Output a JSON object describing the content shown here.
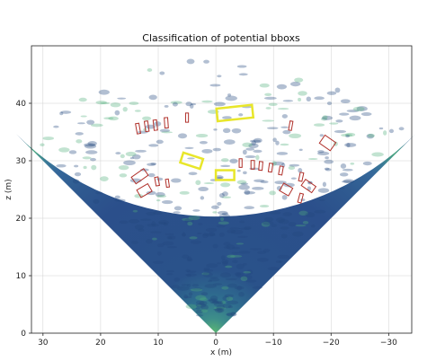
{
  "chart_data": {
    "type": "heatmap",
    "title": "Classification of potential bboxs",
    "xlabel": "x (m)",
    "ylabel": "z (m)",
    "xlim": [
      32,
      -34
    ],
    "ylim": [
      0,
      50
    ],
    "x_ticks": [
      30,
      20,
      10,
      0,
      -10,
      -20,
      -30
    ],
    "x_tick_labels": [
      "30",
      "20",
      "10",
      "0",
      "−10",
      "−20",
      "−30"
    ],
    "y_ticks": [
      0,
      10,
      20,
      30,
      40
    ],
    "y_tick_labels": [
      "0",
      "10",
      "20",
      "30",
      "40"
    ],
    "grid": true,
    "sector": {
      "apex": [
        0,
        0
      ],
      "range_max": 49,
      "half_angle_deg": 45
    },
    "colors": {
      "background": "#2c4f8a",
      "ring_bright": "#4fae7c",
      "selected_box": "#e8e62a",
      "rejected_box": "#b0302a",
      "grid": "#d0d0d0"
    },
    "selected_boxes": [
      {
        "cx": -3.3,
        "cz": 38.3,
        "w": 6.2,
        "h": 2.2,
        "angle": -6
      },
      {
        "cx": 4.2,
        "cz": 30.0,
        "w": 3.6,
        "h": 1.8,
        "angle": 18
      },
      {
        "cx": -1.6,
        "cz": 27.5,
        "w": 3.2,
        "h": 1.7,
        "angle": 0
      }
    ],
    "rejected_boxes": [
      {
        "cx": 13.5,
        "cz": 35.6,
        "w": 0.6,
        "h": 1.8,
        "angle": -10
      },
      {
        "cx": 12.0,
        "cz": 36.0,
        "w": 0.6,
        "h": 1.8,
        "angle": -8
      },
      {
        "cx": 10.5,
        "cz": 36.2,
        "w": 0.6,
        "h": 1.8,
        "angle": -6
      },
      {
        "cx": 8.6,
        "cz": 36.6,
        "w": 0.6,
        "h": 1.8,
        "angle": -4
      },
      {
        "cx": 5.0,
        "cz": 37.5,
        "w": 0.5,
        "h": 1.6,
        "angle": 0
      },
      {
        "cx": -13.0,
        "cz": 36.1,
        "w": 0.5,
        "h": 1.6,
        "angle": 10
      },
      {
        "cx": -19.4,
        "cz": 33.1,
        "w": 2.3,
        "h": 1.7,
        "angle": 35
      },
      {
        "cx": -4.3,
        "cz": 29.6,
        "w": 0.5,
        "h": 1.5,
        "angle": 0
      },
      {
        "cx": -6.4,
        "cz": 29.3,
        "w": 0.6,
        "h": 1.5,
        "angle": 0
      },
      {
        "cx": -7.8,
        "cz": 29.1,
        "w": 0.6,
        "h": 1.5,
        "angle": 5
      },
      {
        "cx": -9.5,
        "cz": 28.8,
        "w": 0.6,
        "h": 1.5,
        "angle": 8
      },
      {
        "cx": -11.3,
        "cz": 28.3,
        "w": 0.6,
        "h": 1.5,
        "angle": 10
      },
      {
        "cx": -14.8,
        "cz": 27.2,
        "w": 0.6,
        "h": 1.5,
        "angle": 12
      },
      {
        "cx": -16.1,
        "cz": 25.6,
        "w": 2.2,
        "h": 1.3,
        "angle": 35
      },
      {
        "cx": -12.2,
        "cz": 25.0,
        "w": 1.8,
        "h": 1.5,
        "angle": 30
      },
      {
        "cx": -14.7,
        "cz": 23.5,
        "w": 0.6,
        "h": 1.6,
        "angle": 15
      },
      {
        "cx": 13.2,
        "cz": 27.3,
        "w": 2.6,
        "h": 1.4,
        "angle": -35
      },
      {
        "cx": 12.4,
        "cz": 24.8,
        "w": 2.2,
        "h": 1.5,
        "angle": -30
      },
      {
        "cx": 10.2,
        "cz": 26.4,
        "w": 0.6,
        "h": 1.5,
        "angle": -10
      },
      {
        "cx": 8.4,
        "cz": 26.1,
        "w": 0.5,
        "h": 1.4,
        "angle": -8
      }
    ]
  }
}
